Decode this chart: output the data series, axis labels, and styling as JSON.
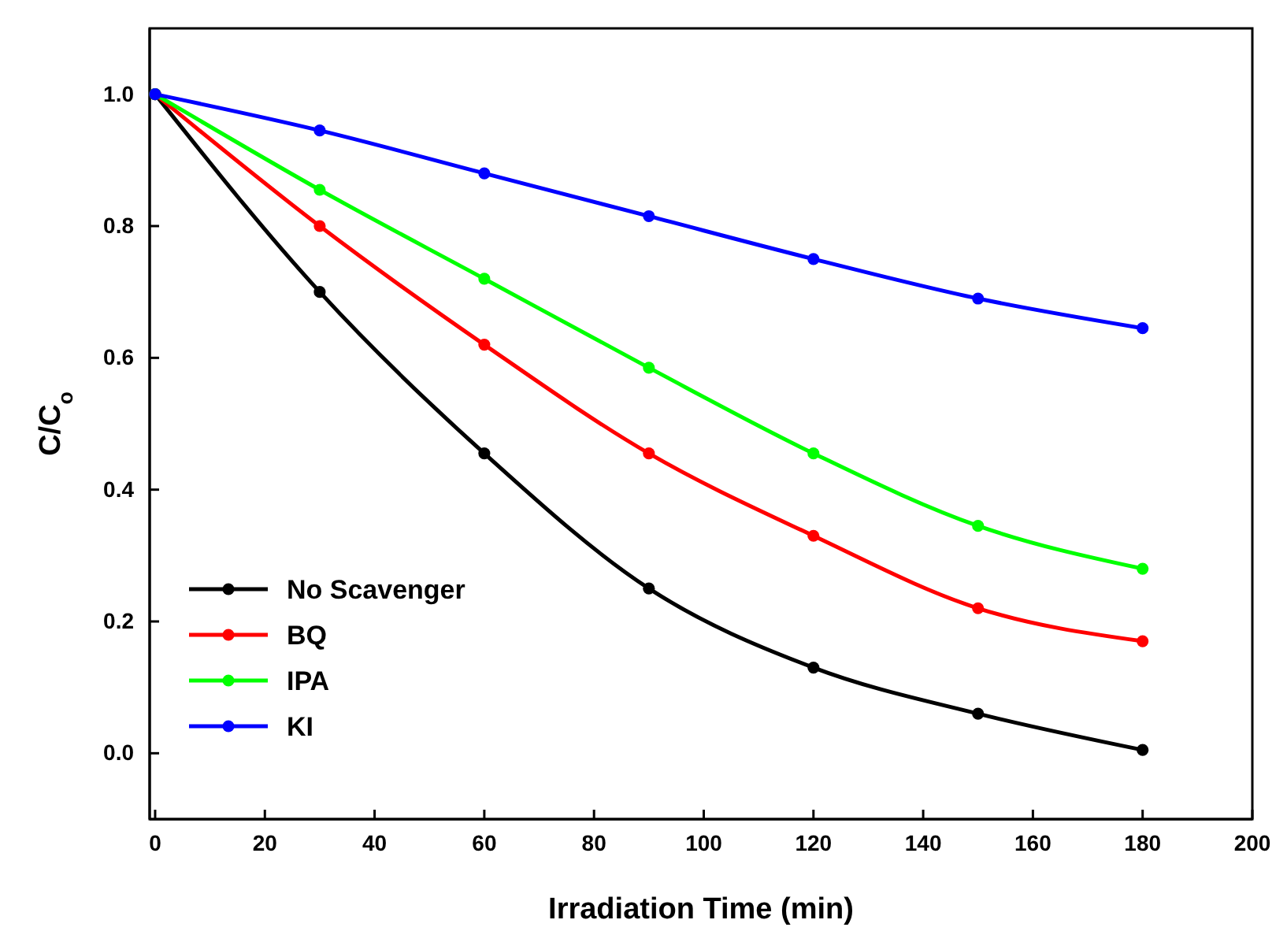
{
  "chart_data": {
    "type": "line",
    "xlabel": "Irradiation Time (min)",
    "ylabel": "C/C$_{o}$",
    "x": [
      0,
      30,
      60,
      90,
      120,
      150,
      180
    ],
    "series": [
      {
        "name": "No Scavenger",
        "color": "#000000",
        "values": [
          1.0,
          0.7,
          0.455,
          0.25,
          0.13,
          0.06,
          0.005
        ]
      },
      {
        "name": "BQ",
        "color": "#ff0000",
        "values": [
          1.0,
          0.8,
          0.62,
          0.455,
          0.33,
          0.22,
          0.17
        ]
      },
      {
        "name": "IPA",
        "color": "#00ff00",
        "values": [
          1.0,
          0.855,
          0.72,
          0.585,
          0.455,
          0.345,
          0.28
        ]
      },
      {
        "name": "KI",
        "color": "#0000ff",
        "values": [
          1.0,
          0.945,
          0.88,
          0.815,
          0.75,
          0.69,
          0.645
        ]
      }
    ],
    "xlim": [
      -1,
      200
    ],
    "xticks": [
      0,
      20,
      40,
      60,
      80,
      100,
      120,
      140,
      160,
      180,
      200
    ],
    "ylim": [
      -0.1,
      1.1
    ],
    "yticks": [
      {
        "value": 0,
        "label": "0.0"
      },
      {
        "value": 0.2,
        "label": "0.2"
      },
      {
        "value": 0.4,
        "label": "0.4"
      },
      {
        "value": 0.6,
        "label": "0.6"
      },
      {
        "value": 0.8,
        "label": "0.8"
      },
      {
        "value": 1.0,
        "label": "1.0"
      }
    ],
    "grid": false,
    "legend": "bottom left",
    "marker": "circle",
    "line_style": "solid"
  }
}
